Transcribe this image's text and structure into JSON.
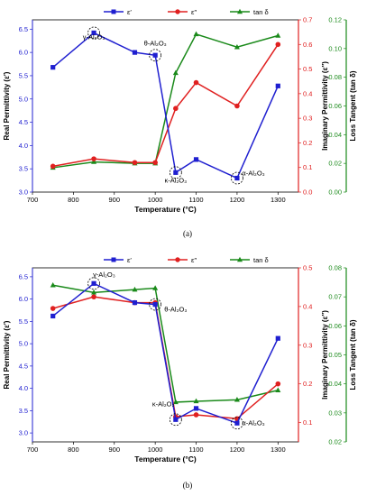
{
  "chart_data": [
    {
      "type": "line",
      "panel_label": "(a)",
      "x": [
        750,
        850,
        950,
        1000,
        1050,
        1100,
        1200,
        1300
      ],
      "xlabel": "Temperature (°C)",
      "xlim": [
        700,
        1350
      ],
      "xticks": [
        "700",
        "800",
        "900",
        "1000",
        "1100",
        "1200",
        "1300"
      ],
      "legend_position": "top",
      "axes": {
        "left": {
          "label": "Real Permittivity (ε′)",
          "ylim": [
            3.0,
            6.7
          ],
          "ticks": [
            "3.0",
            "3.5",
            "4.0",
            "4.5",
            "5.0",
            "5.5",
            "6.0",
            "6.5"
          ],
          "color": "#1f1fd0"
        },
        "right1": {
          "label": "Imaginary Permittivity (ε″)",
          "ylim": [
            0,
            0.7
          ],
          "ticks": [
            "0.0",
            "0.1",
            "0.2",
            "0.3",
            "0.4",
            "0.5",
            "0.6",
            "0.7"
          ],
          "color": "#e02020"
        },
        "right2": {
          "label": "Loss Tangent (tan δ)",
          "ylim": [
            0,
            0.12
          ],
          "ticks": [
            "0.00",
            "0.02",
            "0.04",
            "0.06",
            "0.08",
            "0.10",
            "0.12"
          ],
          "color": "#1a8a1a"
        }
      },
      "series": [
        {
          "name": "ε′",
          "axis": "left",
          "color": "#1f1fd0",
          "marker": "square",
          "values": [
            5.68,
            6.42,
            6.0,
            5.94,
            3.42,
            3.7,
            3.3,
            5.28
          ]
        },
        {
          "name": "ε″",
          "axis": "right1",
          "color": "#e02020",
          "marker": "circle",
          "values": [
            0.105,
            0.135,
            0.12,
            0.12,
            0.34,
            0.445,
            0.35,
            0.6
          ]
        },
        {
          "name": "tan δ",
          "axis": "right2",
          "color": "#1a8a1a",
          "marker": "triangle",
          "values": [
            0.017,
            0.021,
            0.02,
            0.02,
            0.083,
            0.11,
            0.101,
            0.109
          ]
        }
      ],
      "annotations": [
        {
          "text": "γ-Al₂O₃",
          "x": 850,
          "y": 6.28,
          "circle_at": [
            850,
            6.42
          ]
        },
        {
          "text": "θ-Al₂O₃",
          "x": 1000,
          "y": 6.15,
          "circle_at": [
            1000,
            5.94
          ]
        },
        {
          "text": "κ-Al₂O₃",
          "x": 1050,
          "y": 3.2,
          "circle_at": [
            1050,
            3.42
          ]
        },
        {
          "text": "α-Al₂O₃",
          "x": 1240,
          "y": 3.36,
          "circle_at": [
            1200,
            3.3
          ]
        }
      ]
    },
    {
      "type": "line",
      "panel_label": "(b)",
      "x": [
        750,
        850,
        950,
        1000,
        1050,
        1100,
        1200,
        1300
      ],
      "xlabel": "Temperature (°C)",
      "xlim": [
        700,
        1350
      ],
      "xticks": [
        "700",
        "800",
        "900",
        "1000",
        "1100",
        "1200",
        "1300"
      ],
      "legend_position": "top",
      "axes": {
        "left": {
          "label": "Real Permittivity (ε′)",
          "ylim": [
            2.8,
            6.7
          ],
          "ticks": [
            "3.0",
            "3.5",
            "4.0",
            "4.5",
            "5.0",
            "5.5",
            "6.0",
            "6.5"
          ],
          "color": "#1f1fd0"
        },
        "right1": {
          "label": "Imaginary Permittivity (ε″)",
          "ylim": [
            0.05,
            0.5
          ],
          "ticks": [
            "0.1",
            "0.2",
            "0.3",
            "0.4",
            "0.5"
          ],
          "color": "#e02020"
        },
        "right2": {
          "label": "Loss Tangent (tan δ)",
          "ylim": [
            0.02,
            0.08
          ],
          "ticks": [
            "0.02",
            "0.03",
            "0.04",
            "0.05",
            "0.06",
            "0.07",
            "0.08"
          ],
          "color": "#1a8a1a"
        }
      },
      "series": [
        {
          "name": "ε′",
          "axis": "left",
          "color": "#1f1fd0",
          "marker": "square",
          "values": [
            5.62,
            6.35,
            5.92,
            5.88,
            3.3,
            3.55,
            3.22,
            5.12
          ]
        },
        {
          "name": "ε″",
          "axis": "right1",
          "color": "#e02020",
          "marker": "circle",
          "values": [
            0.395,
            0.425,
            0.41,
            0.41,
            0.115,
            0.12,
            0.11,
            0.2
          ]
        },
        {
          "name": "tan δ",
          "axis": "right2",
          "color": "#1a8a1a",
          "marker": "triangle",
          "values": [
            0.074,
            0.0715,
            0.0725,
            0.073,
            0.0337,
            0.034,
            0.0345,
            0.0378
          ]
        }
      ],
      "annotations": [
        {
          "text": "γ-Al₂O₃",
          "x": 875,
          "y": 6.5,
          "circle_at": [
            850,
            6.35
          ]
        },
        {
          "text": "θ-Al₂O₃",
          "x": 1050,
          "y": 5.72,
          "circle_at": [
            1000,
            5.88
          ]
        },
        {
          "text": "κ-Al₂O₃",
          "x": 1020,
          "y": 3.6,
          "circle_at": [
            1050,
            3.3
          ]
        },
        {
          "text": "α-Al₂O₃",
          "x": 1240,
          "y": 3.17,
          "circle_at": [
            1200,
            3.22
          ]
        }
      ]
    }
  ]
}
